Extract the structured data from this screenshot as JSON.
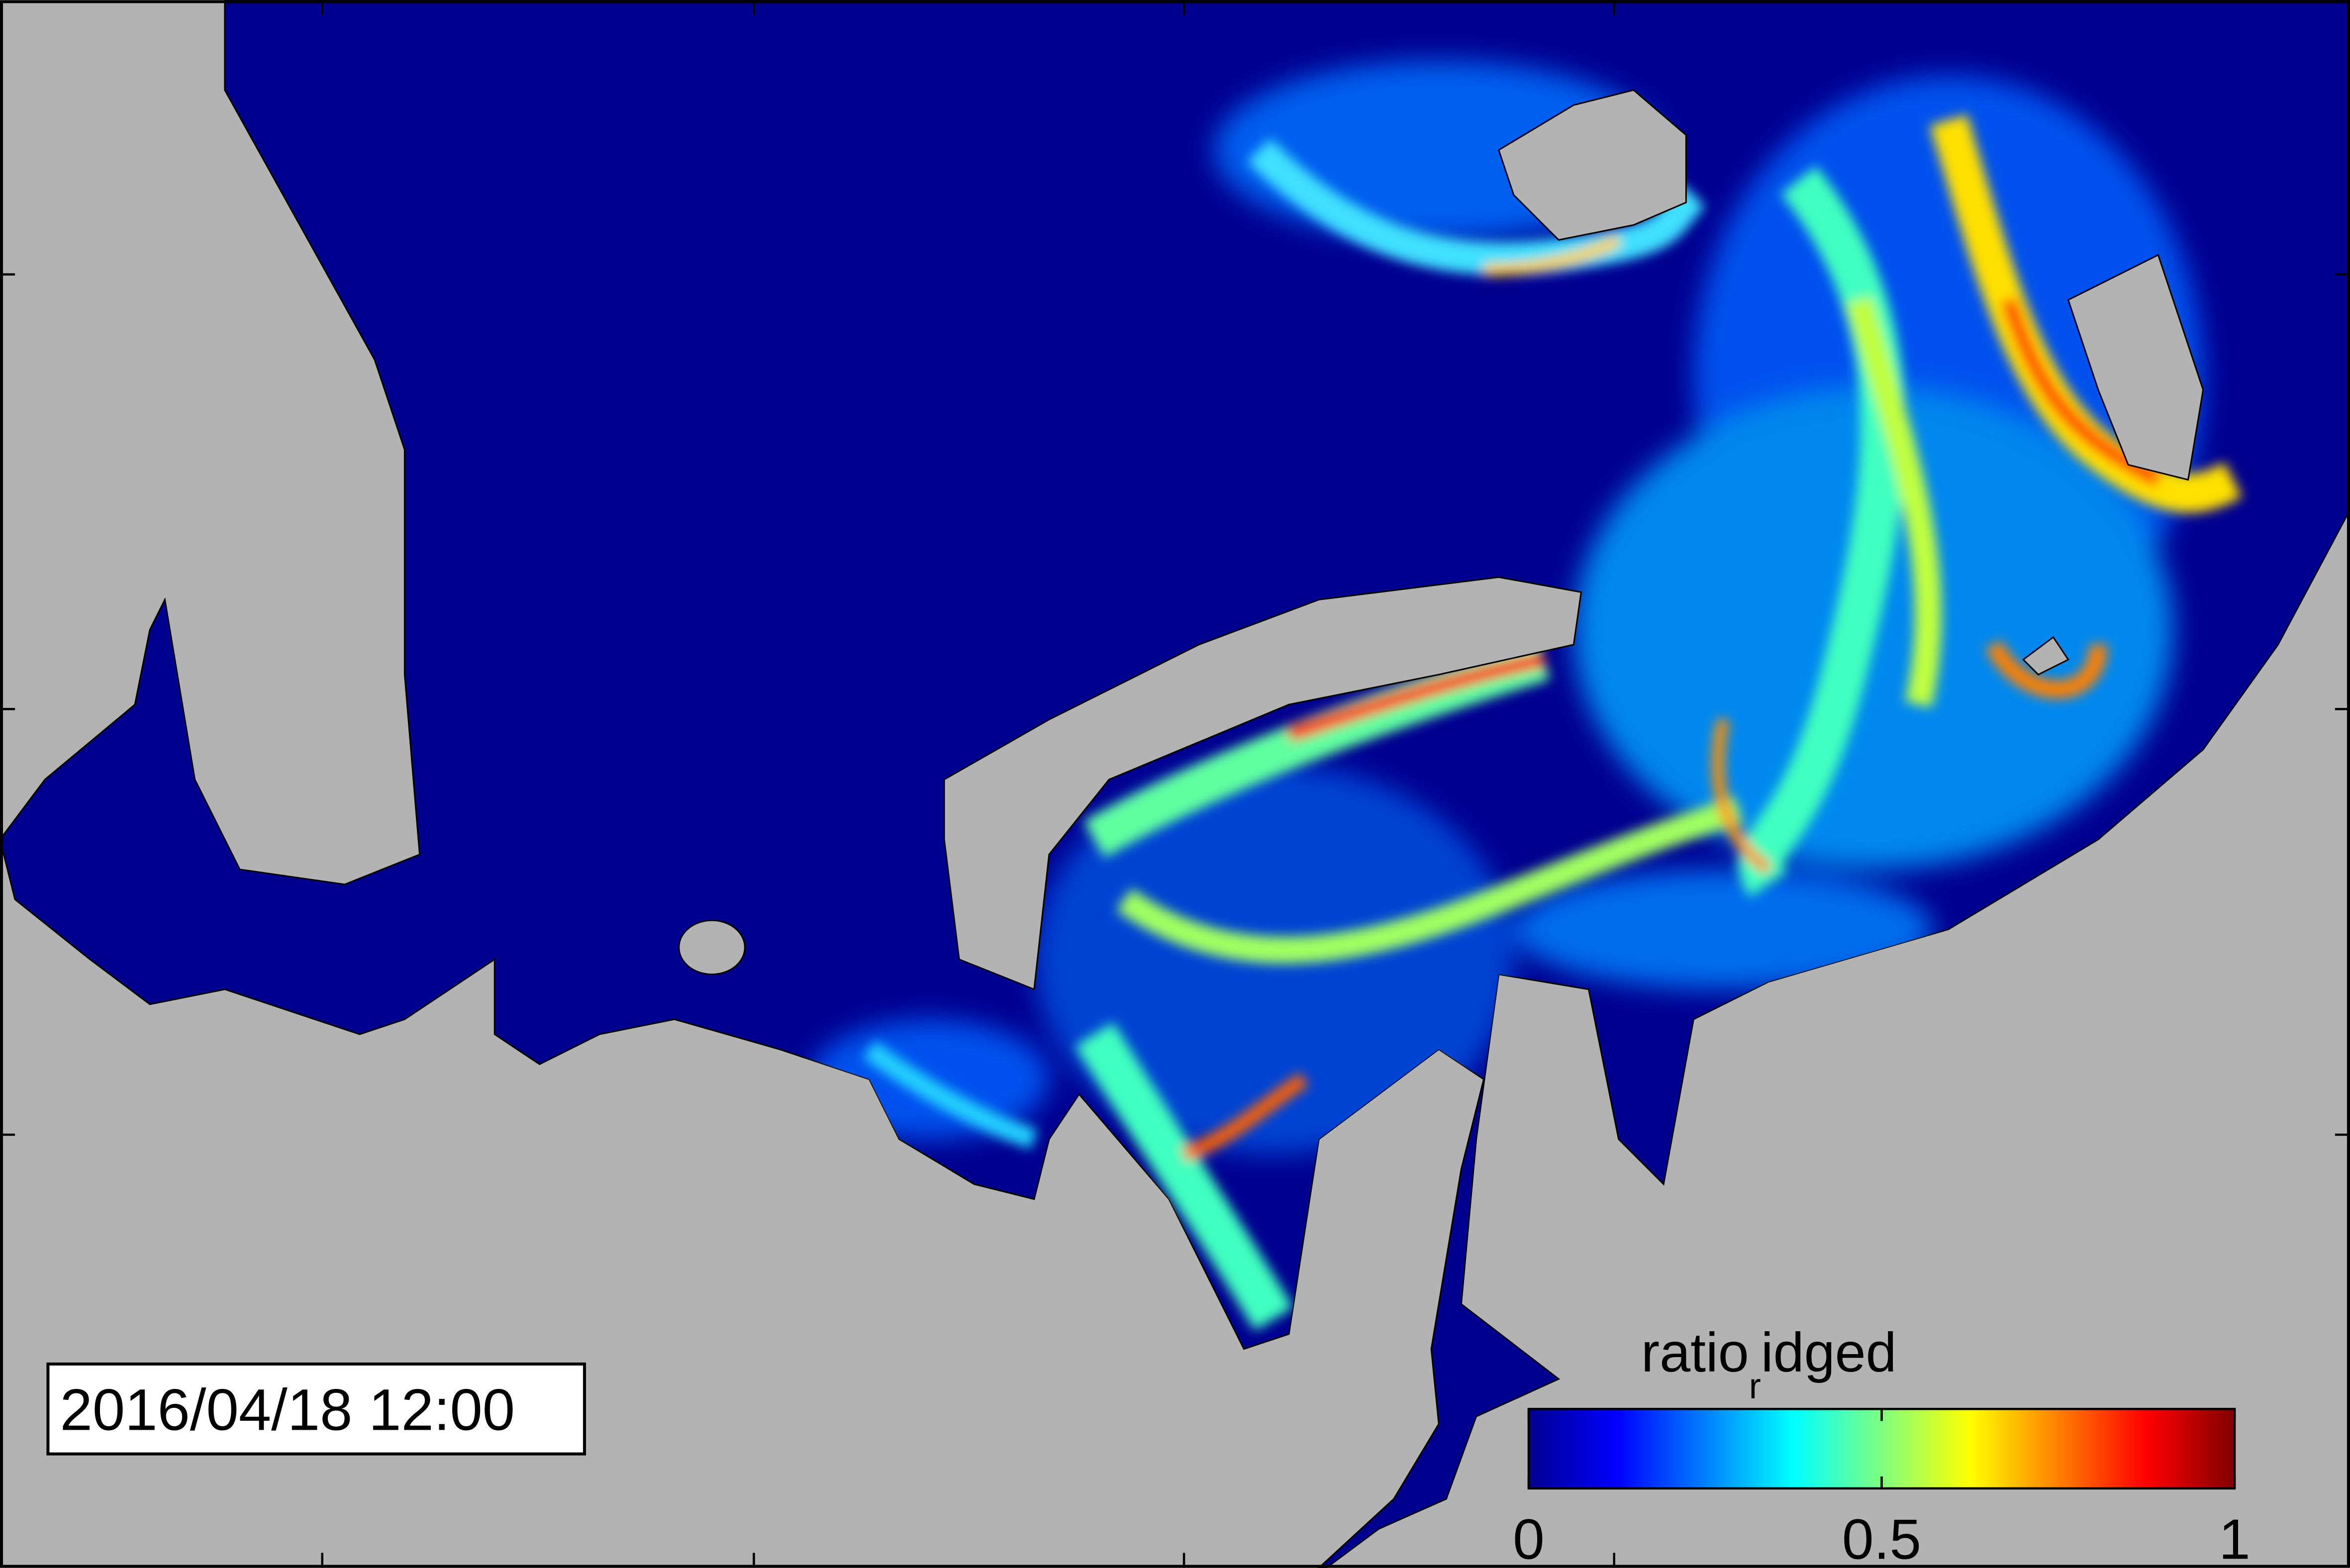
{
  "timestamp": "2016/04/18 12:00",
  "colorbar": {
    "label": [
      "ratio",
      "r",
      "idged"
    ],
    "lim": [
      0,
      1
    ],
    "ticks": [
      0,
      0.5,
      1
    ],
    "colormap": "jet"
  }
}
